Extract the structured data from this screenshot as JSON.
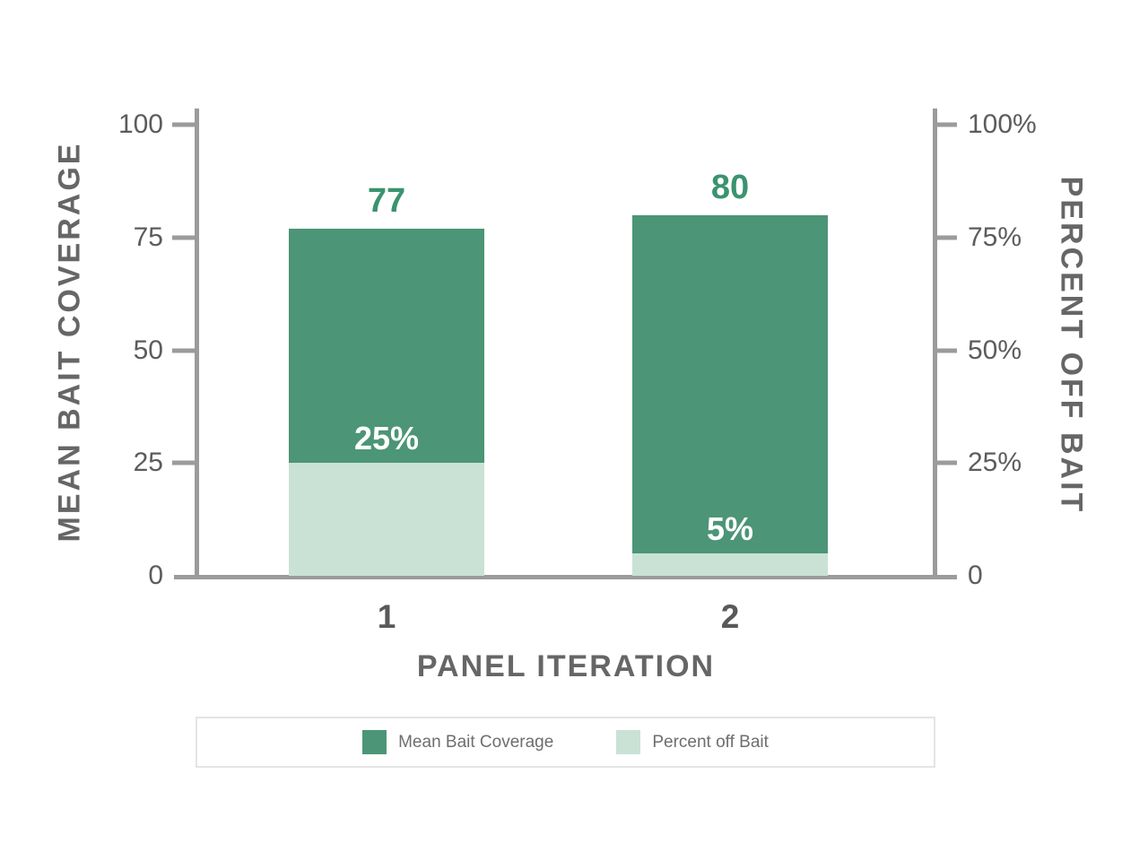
{
  "chart_data": {
    "type": "bar",
    "subtype": "overlay-stacked-dual-axis",
    "title": "",
    "xlabel": "PANEL ITERATION",
    "ylabel_left": "MEAN BAIT COVERAGE",
    "ylabel_right": "PERCENT OFF BAIT",
    "categories": [
      "1",
      "2"
    ],
    "series": [
      {
        "name": "Mean Bait Coverage",
        "color": "#4c9577",
        "axis": "left",
        "values": [
          77,
          80
        ],
        "labels": [
          "77",
          "80"
        ]
      },
      {
        "name": "Percent off Bait",
        "color": "#c9e2d5",
        "axis": "right",
        "values": [
          25,
          5
        ],
        "labels": [
          "25%",
          "5%"
        ]
      }
    ],
    "ylim_left": [
      0,
      100
    ],
    "ylim_right": [
      0,
      100
    ],
    "grid": false,
    "legend_position": "bottom",
    "axis_ticks": [
      {
        "value": 100,
        "left": "100",
        "right": "100%"
      },
      {
        "value": 75,
        "left": "75",
        "right": "75%"
      },
      {
        "value": 50,
        "left": "50",
        "right": "50%"
      },
      {
        "value": 25,
        "left": "25",
        "right": "25%"
      },
      {
        "value": 0,
        "left": "0",
        "right": "0"
      }
    ],
    "bars": [
      {
        "category": "1",
        "coverage": 77,
        "coverage_label": "77",
        "percent_off": 25,
        "percent_off_label": "25%"
      },
      {
        "category": "2",
        "coverage": 80,
        "coverage_label": "80",
        "percent_off": 5,
        "percent_off_label": "5%"
      }
    ]
  },
  "legend": {
    "items": [
      {
        "label": "Mean Bait Coverage"
      },
      {
        "label": "Percent off Bait"
      }
    ]
  },
  "colors": {
    "bar_dark_green": "#4c9577",
    "bar_light_green": "#c9e2d5",
    "value_label_green": "#3a9370",
    "axis_gray": "#9b9b9b",
    "text_gray": "#5c5c5c",
    "background": "#ffffff"
  }
}
